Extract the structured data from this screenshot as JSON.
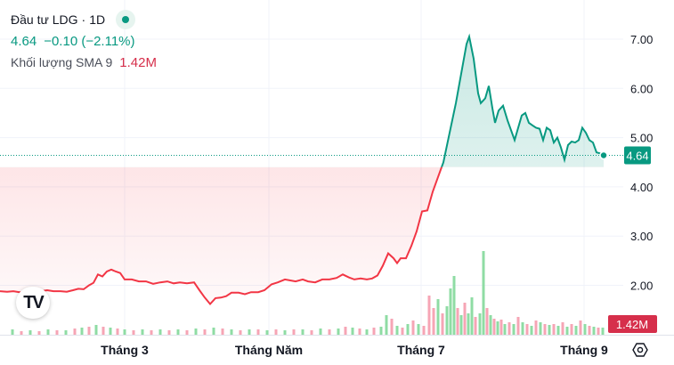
{
  "legend": {
    "symbol": "Đầu tư LDG",
    "interval": "1D",
    "separator": "·",
    "price": "4.64",
    "change": "−0.10 (−2.11%)",
    "volume_label": "Khối lượng SMA 9",
    "volume_value": "1.42M"
  },
  "chart_data": {
    "type": "area",
    "baseline_price": 4.4,
    "colors": {
      "up": "#089981",
      "down": "#f23645",
      "volume_up": "#8fdca4",
      "volume_down": "#f6a5b5",
      "volume_label_bg": "#d62f4b"
    },
    "y_axis": {
      "ticks": [
        "7.00",
        "6.00",
        "5.00",
        "4.00",
        "3.00",
        "2.00"
      ],
      "range": [
        1.0,
        7.6
      ]
    },
    "x_axis": {
      "ticks": [
        "Tháng 3",
        "Tháng Năm",
        "Tháng 7",
        "Tháng 9"
      ]
    },
    "last_price_label": "4.64",
    "volume_axis_label": "1.42M",
    "price_series": [
      [
        0,
        1.88
      ],
      [
        8,
        1.87
      ],
      [
        15,
        1.88
      ],
      [
        22,
        1.86
      ],
      [
        30,
        1.87
      ],
      [
        38,
        1.86
      ],
      [
        46,
        1.88
      ],
      [
        53,
        1.9
      ],
      [
        60,
        1.88
      ],
      [
        68,
        1.88
      ],
      [
        75,
        1.87
      ],
      [
        82,
        1.9
      ],
      [
        88,
        1.93
      ],
      [
        94,
        1.92
      ],
      [
        100,
        2.0
      ],
      [
        105,
        2.05
      ],
      [
        110,
        2.22
      ],
      [
        115,
        2.18
      ],
      [
        120,
        2.28
      ],
      [
        125,
        2.32
      ],
      [
        130,
        2.28
      ],
      [
        135,
        2.25
      ],
      [
        140,
        2.12
      ],
      [
        148,
        2.12
      ],
      [
        156,
        2.08
      ],
      [
        164,
        2.08
      ],
      [
        172,
        2.03
      ],
      [
        180,
        2.06
      ],
      [
        188,
        2.08
      ],
      [
        195,
        2.04
      ],
      [
        202,
        2.06
      ],
      [
        210,
        2.04
      ],
      [
        218,
        2.06
      ],
      [
        224,
        1.9
      ],
      [
        230,
        1.75
      ],
      [
        236,
        1.62
      ],
      [
        242,
        1.74
      ],
      [
        248,
        1.75
      ],
      [
        254,
        1.78
      ],
      [
        260,
        1.85
      ],
      [
        268,
        1.85
      ],
      [
        275,
        1.82
      ],
      [
        282,
        1.86
      ],
      [
        290,
        1.86
      ],
      [
        297,
        1.9
      ],
      [
        305,
        2.02
      ],
      [
        312,
        2.06
      ],
      [
        320,
        2.12
      ],
      [
        326,
        2.1
      ],
      [
        332,
        2.08
      ],
      [
        340,
        2.12
      ],
      [
        346,
        2.08
      ],
      [
        354,
        2.06
      ],
      [
        362,
        2.12
      ],
      [
        370,
        2.12
      ],
      [
        378,
        2.15
      ],
      [
        385,
        2.22
      ],
      [
        392,
        2.16
      ],
      [
        398,
        2.12
      ],
      [
        405,
        2.14
      ],
      [
        412,
        2.12
      ],
      [
        418,
        2.14
      ],
      [
        424,
        2.2
      ],
      [
        430,
        2.4
      ],
      [
        436,
        2.65
      ],
      [
        442,
        2.55
      ],
      [
        446,
        2.45
      ],
      [
        450,
        2.55
      ],
      [
        456,
        2.55
      ],
      [
        462,
        2.8
      ],
      [
        468,
        3.1
      ],
      [
        474,
        3.5
      ],
      [
        480,
        3.52
      ],
      [
        486,
        3.9
      ],
      [
        492,
        4.2
      ],
      [
        498,
        4.5
      ],
      [
        505,
        5.1
      ],
      [
        512,
        5.7
      ],
      [
        518,
        6.3
      ],
      [
        524,
        6.9
      ],
      [
        527,
        7.05
      ],
      [
        532,
        6.6
      ],
      [
        537,
        5.9
      ],
      [
        540,
        5.7
      ],
      [
        545,
        5.8
      ],
      [
        549,
        6.05
      ],
      [
        553,
        5.6
      ],
      [
        556,
        5.3
      ],
      [
        560,
        5.55
      ],
      [
        565,
        5.65
      ],
      [
        570,
        5.35
      ],
      [
        574,
        5.15
      ],
      [
        578,
        4.95
      ],
      [
        582,
        5.2
      ],
      [
        586,
        5.45
      ],
      [
        590,
        5.5
      ],
      [
        594,
        5.3
      ],
      [
        598,
        5.25
      ],
      [
        602,
        5.2
      ],
      [
        606,
        5.18
      ],
      [
        610,
        4.95
      ],
      [
        614,
        5.2
      ],
      [
        618,
        5.15
      ],
      [
        622,
        4.9
      ],
      [
        626,
        5.0
      ],
      [
        630,
        4.8
      ],
      [
        634,
        4.55
      ],
      [
        638,
        4.85
      ],
      [
        642,
        4.92
      ],
      [
        646,
        4.9
      ],
      [
        650,
        4.95
      ],
      [
        654,
        5.2
      ],
      [
        658,
        5.1
      ],
      [
        662,
        4.95
      ],
      [
        666,
        4.9
      ],
      [
        670,
        4.7
      ],
      [
        674,
        4.68
      ],
      [
        678,
        4.64
      ]
    ],
    "volume_series": [
      [
        14,
        6,
        0
      ],
      [
        24,
        4,
        1
      ],
      [
        34,
        5,
        0
      ],
      [
        44,
        4,
        1
      ],
      [
        54,
        6,
        0
      ],
      [
        64,
        5,
        1
      ],
      [
        74,
        5,
        0
      ],
      [
        84,
        7,
        1
      ],
      [
        92,
        8,
        0
      ],
      [
        100,
        9,
        1
      ],
      [
        108,
        11,
        0
      ],
      [
        116,
        9,
        1
      ],
      [
        124,
        8,
        0
      ],
      [
        132,
        7,
        1
      ],
      [
        140,
        6,
        0
      ],
      [
        150,
        5,
        1
      ],
      [
        160,
        6,
        0
      ],
      [
        170,
        5,
        1
      ],
      [
        180,
        6,
        0
      ],
      [
        190,
        5,
        1
      ],
      [
        200,
        6,
        0
      ],
      [
        210,
        5,
        1
      ],
      [
        220,
        7,
        0
      ],
      [
        230,
        6,
        1
      ],
      [
        240,
        8,
        0
      ],
      [
        250,
        7,
        1
      ],
      [
        260,
        6,
        0
      ],
      [
        270,
        5,
        1
      ],
      [
        280,
        6,
        0
      ],
      [
        290,
        6,
        1
      ],
      [
        300,
        5,
        0
      ],
      [
        310,
        6,
        1
      ],
      [
        320,
        5,
        0
      ],
      [
        330,
        6,
        1
      ],
      [
        340,
        6,
        0
      ],
      [
        350,
        5,
        1
      ],
      [
        360,
        7,
        0
      ],
      [
        370,
        6,
        1
      ],
      [
        380,
        7,
        0
      ],
      [
        388,
        9,
        1
      ],
      [
        396,
        8,
        0
      ],
      [
        404,
        7,
        1
      ],
      [
        412,
        6,
        0
      ],
      [
        420,
        8,
        1
      ],
      [
        428,
        9,
        0
      ],
      [
        434,
        22,
        0
      ],
      [
        440,
        18,
        1
      ],
      [
        446,
        10,
        0
      ],
      [
        452,
        8,
        1
      ],
      [
        458,
        12,
        0
      ],
      [
        464,
        16,
        1
      ],
      [
        470,
        12,
        0
      ],
      [
        476,
        10,
        1
      ],
      [
        482,
        44,
        1
      ],
      [
        487,
        30,
        1
      ],
      [
        492,
        40,
        0
      ],
      [
        497,
        24,
        1
      ],
      [
        502,
        32,
        0
      ],
      [
        506,
        52,
        0
      ],
      [
        510,
        66,
        0
      ],
      [
        514,
        30,
        1
      ],
      [
        518,
        22,
        0
      ],
      [
        522,
        36,
        1
      ],
      [
        526,
        24,
        0
      ],
      [
        530,
        42,
        0
      ],
      [
        534,
        20,
        1
      ],
      [
        539,
        24,
        0
      ],
      [
        543,
        94,
        0
      ],
      [
        547,
        30,
        1
      ],
      [
        551,
        22,
        0
      ],
      [
        555,
        18,
        1
      ],
      [
        559,
        15,
        0
      ],
      [
        563,
        17,
        1
      ],
      [
        567,
        12,
        0
      ],
      [
        572,
        14,
        1
      ],
      [
        577,
        12,
        0
      ],
      [
        582,
        20,
        1
      ],
      [
        587,
        14,
        0
      ],
      [
        592,
        12,
        1
      ],
      [
        597,
        10,
        0
      ],
      [
        602,
        16,
        1
      ],
      [
        607,
        14,
        0
      ],
      [
        612,
        12,
        1
      ],
      [
        617,
        11,
        0
      ],
      [
        622,
        12,
        1
      ],
      [
        627,
        10,
        0
      ],
      [
        632,
        14,
        1
      ],
      [
        637,
        9,
        0
      ],
      [
        642,
        12,
        1
      ],
      [
        647,
        10,
        0
      ],
      [
        652,
        16,
        1
      ],
      [
        657,
        12,
        0
      ],
      [
        662,
        10,
        1
      ],
      [
        667,
        9,
        0
      ],
      [
        672,
        8,
        1
      ],
      [
        677,
        8,
        0
      ]
    ]
  }
}
